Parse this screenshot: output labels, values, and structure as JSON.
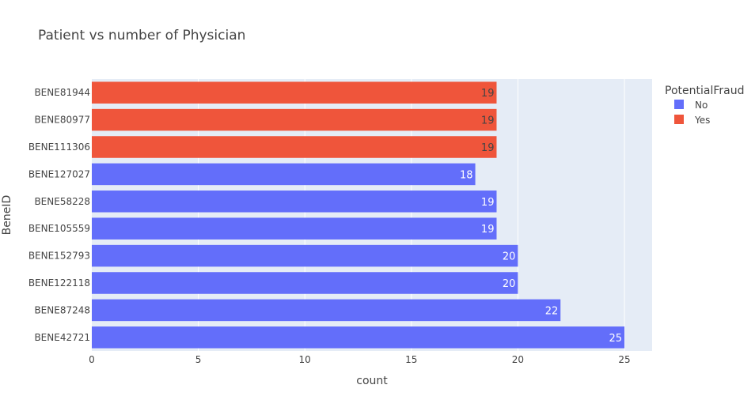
{
  "chart_data": {
    "type": "bar",
    "orientation": "horizontal",
    "title": "Patient vs number of Physician",
    "xlabel": "count",
    "ylabel": "BeneID",
    "xlim": [
      0,
      26.3
    ],
    "xticks": [
      "0",
      "5",
      "10",
      "15",
      "20",
      "25"
    ],
    "grid": true,
    "legend": {
      "title": "PotentialFraud",
      "placement": "right",
      "entries": [
        {
          "name": "No",
          "color": "#636efa"
        },
        {
          "name": "Yes",
          "color": "#ef553b"
        }
      ]
    },
    "categories": [
      "BENE81944",
      "BENE80977",
      "BENE111306",
      "BENE127027",
      "BENE58228",
      "BENE105559",
      "BENE152793",
      "BENE122118",
      "BENE87248",
      "BENE42721"
    ],
    "values": [
      19,
      19,
      19,
      18,
      19,
      19,
      20,
      20,
      22,
      25
    ],
    "value_labels": [
      "19",
      "19",
      "19",
      "18",
      "19",
      "19",
      "20",
      "20",
      "22",
      "25"
    ],
    "groups": [
      "Yes",
      "Yes",
      "Yes",
      "No",
      "No",
      "No",
      "No",
      "No",
      "No",
      "No"
    ]
  },
  "colors": {
    "No": "#636efa",
    "Yes": "#ef553b",
    "plot_bg": "#e5ecf6",
    "grid": "#ffffff"
  }
}
